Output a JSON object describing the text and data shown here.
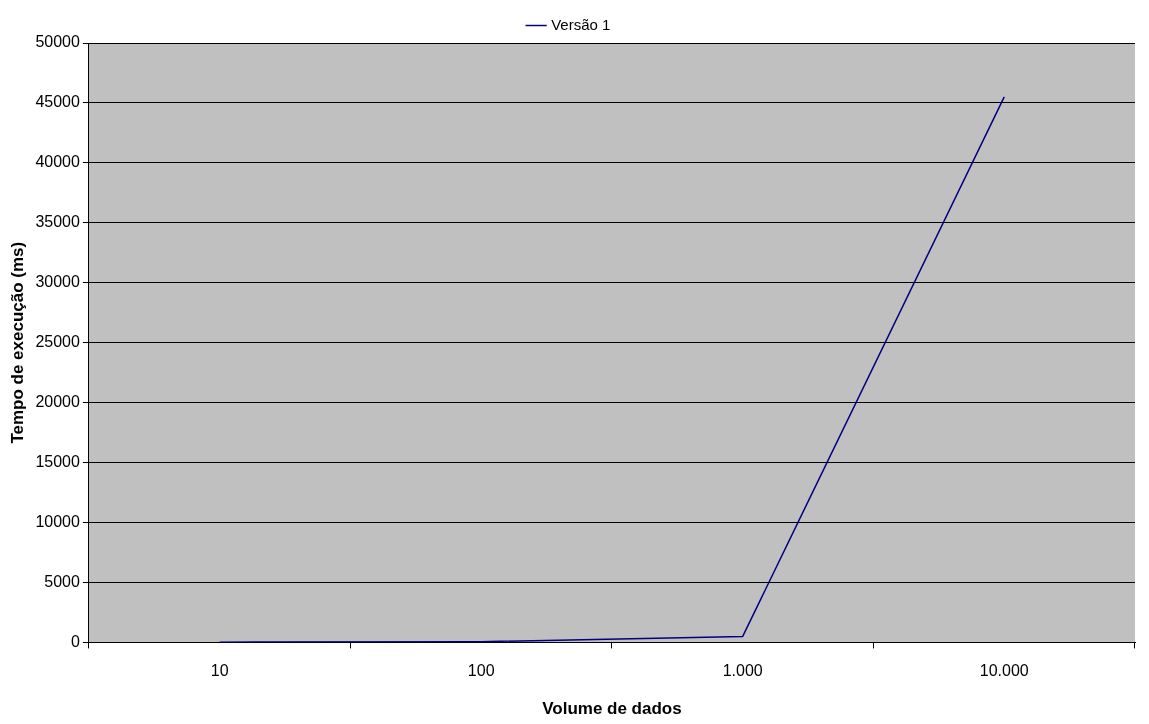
{
  "chart_data": {
    "type": "line",
    "xlabel": "Volume de dados",
    "ylabel": "Tempo de execução (ms)",
    "categories": [
      "10",
      "100",
      "1.000",
      "10.000"
    ],
    "series": [
      {
        "name": "Versão 1",
        "color": "#000080",
        "values": [
          20,
          60,
          500,
          45500
        ]
      }
    ],
    "ylim": [
      0,
      50000
    ],
    "yticks": [
      0,
      5000,
      10000,
      15000,
      20000,
      25000,
      30000,
      35000,
      40000,
      45000,
      50000
    ],
    "grid": "y",
    "legend": "top",
    "marker": "none",
    "line_style": "solid"
  }
}
